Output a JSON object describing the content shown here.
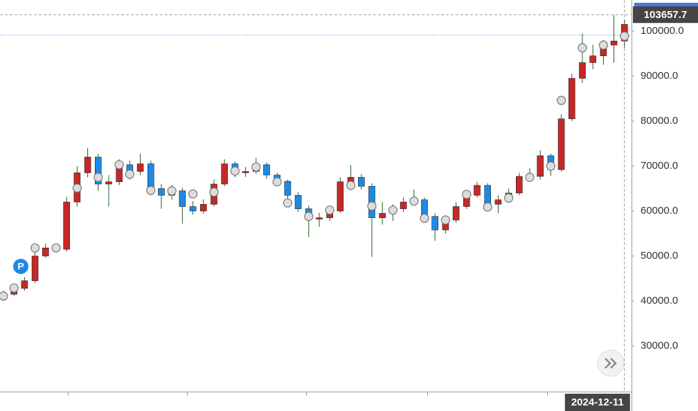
{
  "chart_data": {
    "type": "candlestick",
    "open": [
      40800,
      41500,
      42800,
      44500,
      50000,
      51800,
      51500,
      62000,
      68500,
      72000,
      66000,
      66500,
      70300,
      68800,
      70500,
      65000,
      63500,
      64500,
      61000,
      60000,
      61500,
      66000,
      70500,
      68500,
      68800,
      70300,
      68000,
      66600,
      63500,
      60500,
      58200,
      58500,
      60000,
      66500,
      67500,
      65500,
      58500,
      59500,
      60500,
      62000,
      62500,
      58800,
      55800,
      58000,
      61000,
      63500,
      65700,
      61500,
      62500,
      64000,
      67700,
      67700,
      72300,
      69200,
      80500,
      89500,
      93000,
      94500,
      96900,
      97800
    ],
    "high": [
      42300,
      43600,
      45300,
      50800,
      52800,
      52500,
      63200,
      70000,
      74000,
      72800,
      68000,
      71500,
      71200,
      72800,
      71200,
      66000,
      65800,
      65200,
      62200,
      62600,
      67000,
      71500,
      71000,
      69800,
      71800,
      70800,
      68500,
      67000,
      64200,
      61200,
      59600,
      61000,
      67500,
      70200,
      68200,
      66200,
      62000,
      61500,
      63000,
      64800,
      63000,
      59500,
      58800,
      62000,
      64500,
      66500,
      66200,
      63500,
      65000,
      68500,
      69500,
      73500,
      72800,
      81500,
      90500,
      99500,
      97000,
      98000,
      103600,
      102500
    ],
    "low": [
      40000,
      41200,
      42300,
      44000,
      49600,
      50900,
      51000,
      61000,
      67500,
      64500,
      61000,
      65800,
      67000,
      68000,
      63500,
      60500,
      62500,
      57200,
      59200,
      59400,
      61000,
      65500,
      67500,
      67600,
      68200,
      67200,
      65800,
      62800,
      59800,
      54200,
      56500,
      57800,
      59600,
      65800,
      64800,
      49800,
      57000,
      57800,
      59800,
      61200,
      58000,
      53400,
      55000,
      57400,
      60500,
      63000,
      60500,
      59500,
      61800,
      63500,
      66800,
      67000,
      67800,
      68800,
      80000,
      88500,
      91500,
      92500,
      93000,
      96200
    ],
    "close": [
      41500,
      42800,
      44500,
      50000,
      51800,
      51500,
      62000,
      68500,
      72000,
      66000,
      66500,
      70300,
      68800,
      70500,
      65000,
      63500,
      64500,
      61000,
      60000,
      61500,
      66000,
      70500,
      68500,
      68800,
      70300,
      68000,
      66600,
      63500,
      60500,
      58200,
      58500,
      60000,
      66500,
      67500,
      65500,
      58500,
      59500,
      60500,
      62000,
      62500,
      58800,
      55800,
      58000,
      61000,
      63500,
      65700,
      61500,
      62500,
      64000,
      67700,
      67700,
      72300,
      69200,
      80500,
      89500,
      93000,
      94500,
      96900,
      97800,
      101500
    ],
    "up_color": "#c62828",
    "down_color": "#1e88e5",
    "wick_color": "#1b5e20",
    "markers": [
      {
        "candle": 0,
        "value": 41100
      },
      {
        "candle": 1,
        "value": 42900
      },
      {
        "candle": 3,
        "value": 51800
      },
      {
        "candle": 5,
        "value": 51800
      },
      {
        "candle": 7,
        "value": 65100
      },
      {
        "candle": 9,
        "value": 67500
      },
      {
        "candle": 11,
        "value": 70300
      },
      {
        "candle": 12,
        "value": 68200
      },
      {
        "candle": 14,
        "value": 64600
      },
      {
        "candle": 16,
        "value": 64500
      },
      {
        "candle": 18,
        "value": 63800
      },
      {
        "candle": 20,
        "value": 64200
      },
      {
        "candle": 22,
        "value": 68900
      },
      {
        "candle": 24,
        "value": 69800
      },
      {
        "candle": 26,
        "value": 66500
      },
      {
        "candle": 27,
        "value": 61800
      },
      {
        "candle": 29,
        "value": 58800
      },
      {
        "candle": 31,
        "value": 60200
      },
      {
        "candle": 33,
        "value": 65700
      },
      {
        "candle": 35,
        "value": 61100
      },
      {
        "candle": 37,
        "value": 60200
      },
      {
        "candle": 39,
        "value": 62200
      },
      {
        "candle": 40,
        "value": 58400
      },
      {
        "candle": 42,
        "value": 58000
      },
      {
        "candle": 44,
        "value": 63700
      },
      {
        "candle": 46,
        "value": 60900
      },
      {
        "candle": 48,
        "value": 62900
      },
      {
        "candle": 50,
        "value": 67500
      },
      {
        "candle": 52,
        "value": 70000
      },
      {
        "candle": 53,
        "value": 84600
      },
      {
        "candle": 55,
        "value": 96300
      },
      {
        "candle": 57,
        "value": 96900
      },
      {
        "candle": 59,
        "value": 98900
      }
    ],
    "pin": {
      "label": "P"
    },
    "last_price": {
      "value": 103657.7,
      "label": "103657.7"
    },
    "reference_line": 99100,
    "crosshair": {
      "candle": 59,
      "date": "2024-12-11"
    },
    "ylim": [
      19850,
      106920
    ],
    "yticks": [
      {
        "value": 30000,
        "label": "30000.0"
      },
      {
        "value": 40000,
        "label": "40000.0"
      },
      {
        "value": 50000,
        "label": "50000.0"
      },
      {
        "value": 60000,
        "label": "60000.0"
      },
      {
        "value": 70000,
        "label": "70000.0"
      },
      {
        "value": 80000,
        "label": "80000.0"
      },
      {
        "value": 90000,
        "label": "90000.0"
      },
      {
        "value": 100000,
        "label": "100000.0"
      }
    ]
  }
}
